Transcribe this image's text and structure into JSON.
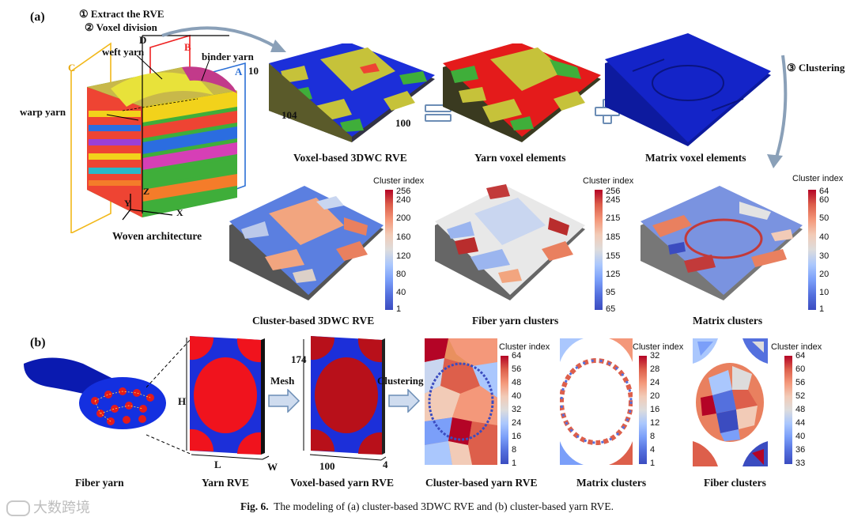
{
  "panel_a": {
    "label": "(a)",
    "step1": "① Extract the RVE",
    "step2": "② Voxel division",
    "step3": "③ Clustering",
    "arch": {
      "weft_yarn": "weft yarn",
      "binder_yarn": "binder yarn",
      "warp_yarn": "warp yarn",
      "plane_A": "A",
      "plane_B": "B",
      "plane_C": "C",
      "plane_D": "D",
      "axis_x": "X",
      "axis_y": "Y",
      "axis_z": "Z",
      "caption": "Woven architecture"
    },
    "voxel_rve": {
      "dim_h": "10",
      "dim_l": "104",
      "dim_w": "100",
      "caption": "Voxel-based 3DWC RVE"
    },
    "yarn_voxel_caption": "Yarn voxel elements",
    "matrix_voxel_caption": "Matrix voxel elements",
    "cluster_rve": {
      "cb_title": "Cluster index",
      "ticks": [
        "256",
        "240",
        "200",
        "160",
        "120",
        "80",
        "40",
        "1"
      ],
      "caption": "Cluster-based 3DWC RVE"
    },
    "fiber_yarn_clusters": {
      "cb_title": "Cluster index",
      "ticks": [
        "256",
        "245",
        "215",
        "185",
        "155",
        "125",
        "95",
        "65"
      ],
      "caption": "Fiber yarn clusters"
    },
    "matrix_clusters": {
      "cb_title": "Cluster index",
      "ticks": [
        "64",
        "60",
        "50",
        "40",
        "30",
        "20",
        "10",
        "1"
      ],
      "caption": "Matrix clusters"
    }
  },
  "panel_b": {
    "label": "(b)",
    "fiber_yarn_caption": "Fiber yarn",
    "yarn_rve": {
      "dim_h": "H",
      "dim_l": "L",
      "dim_w": "W",
      "caption": "Yarn RVE"
    },
    "mesh_label": "Mesh",
    "voxel_yarn": {
      "dim_174": "174",
      "dim_100": "100",
      "dim_4": "4",
      "caption": "Voxel-based yarn RVE"
    },
    "clustering_label": "Clustering",
    "cluster_yarn": {
      "cb_title": "Cluster index",
      "ticks": [
        "64",
        "56",
        "48",
        "40",
        "32",
        "24",
        "16",
        "8",
        "1"
      ],
      "caption": "Cluster-based yarn RVE"
    },
    "matrix_clusters": {
      "cb_title": "Cluster index",
      "ticks": [
        "32",
        "28",
        "24",
        "20",
        "16",
        "12",
        "8",
        "4",
        "1"
      ],
      "caption": "Matrix clusters"
    },
    "fiber_clusters": {
      "cb_title": "Cluster index",
      "ticks": [
        "64",
        "60",
        "56",
        "52",
        "48",
        "44",
        "40",
        "36",
        "33"
      ],
      "caption": "Fiber clusters"
    }
  },
  "figure_caption": {
    "prefix": "Fig. 6.",
    "text": "The modeling of (a) cluster-based 3DWC RVE and (b) cluster-based yarn RVE."
  },
  "watermark": "大数跨境",
  "colors": {
    "yarn_red": "#f0131d",
    "matrix_blue": "#1c2fd9",
    "yarn_olive": "#c6c23a",
    "green": "#3fae3a"
  }
}
